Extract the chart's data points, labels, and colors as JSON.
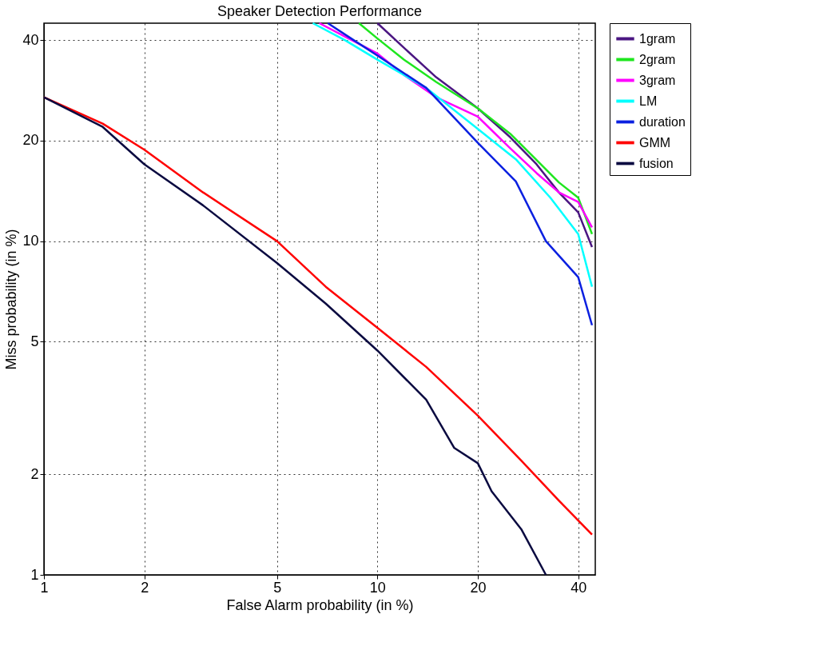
{
  "chart_data": {
    "type": "line",
    "title": "Speaker Detection Performance",
    "xlabel": "False Alarm probability (in %)",
    "ylabel": "Miss probability (in %)",
    "log": "xy",
    "xlim": [
      1,
      45
    ],
    "ylim": [
      1,
      45
    ],
    "xticks": [
      1,
      2,
      5,
      10,
      20,
      40
    ],
    "yticks": [
      1,
      2,
      5,
      10,
      20,
      40
    ],
    "grid": true,
    "legend": "top right",
    "line_style": "solid",
    "series": [
      {
        "name": "1gram",
        "color": "#4b1682",
        "x": [
          10,
          12,
          15,
          20,
          25,
          30,
          35,
          40,
          44
        ],
        "values": [
          45,
          38,
          31,
          25,
          20.5,
          17,
          14,
          12.2,
          9.6
        ]
      },
      {
        "name": "2gram",
        "color": "#1ee61e",
        "x": [
          8.8,
          10,
          12,
          15,
          20,
          25,
          30,
          35,
          40,
          44
        ],
        "values": [
          45,
          40.5,
          35,
          30,
          25,
          21,
          17.5,
          15,
          13.5,
          10.5
        ]
      },
      {
        "name": "3gram",
        "color": "#ff00ff",
        "x": [
          6.7,
          8,
          10,
          12,
          15,
          20,
          25,
          30,
          35,
          40,
          44
        ],
        "values": [
          45,
          41,
          36.5,
          31.5,
          27,
          23.6,
          19,
          16,
          14,
          13.1,
          11
        ]
      },
      {
        "name": "LM",
        "color": "#00ffff",
        "x": [
          6.4,
          8,
          10,
          14,
          20,
          26,
          33,
          40,
          44
        ],
        "values": [
          45,
          40,
          35,
          28.8,
          21.7,
          17.6,
          13.5,
          10.5,
          7.3
        ]
      },
      {
        "name": "duration",
        "color": "#0b20e0",
        "x": [
          7.1,
          8.5,
          10,
          14,
          20,
          26,
          32,
          40,
          44
        ],
        "values": [
          45,
          40,
          36,
          28.8,
          19.7,
          15.1,
          10,
          7.8,
          5.6
        ]
      },
      {
        "name": "GMM",
        "color": "#ff0000",
        "x": [
          1,
          1.5,
          2,
          3,
          5,
          7,
          10,
          14,
          20,
          27,
          35,
          44
        ],
        "values": [
          27,
          22.5,
          18.8,
          14,
          10,
          7.3,
          5.5,
          4.2,
          3,
          2.2,
          1.67,
          1.32
        ]
      },
      {
        "name": "fusion",
        "color": "#0a0a40",
        "x": [
          1,
          1.5,
          2,
          3,
          5,
          7,
          10,
          14,
          17,
          20,
          22,
          27,
          32
        ],
        "values": [
          27,
          22,
          17,
          12.8,
          8.6,
          6.5,
          4.7,
          3.35,
          2.4,
          2.16,
          1.78,
          1.37,
          1
        ]
      }
    ]
  }
}
